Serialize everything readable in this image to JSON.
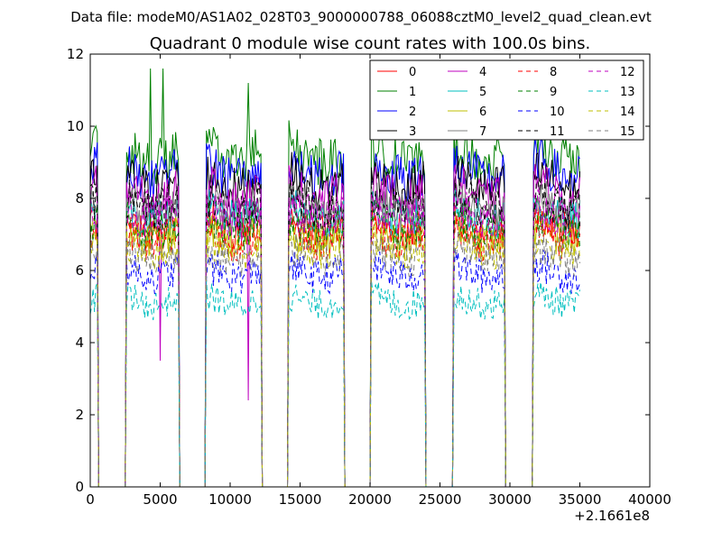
{
  "figure": {
    "suptitle": "Data file: modeM0/AS1A02_028T03_9000000788_06088cztM0_level2_quad_clean.evt"
  },
  "chart_data": {
    "type": "line",
    "title": "Quadrant 0 module wise count rates with 100.0s bins.",
    "xlabel": "",
    "ylabel": "",
    "x_offset_label": "+2.1661e8",
    "xlim": [
      0,
      40000
    ],
    "ylim": [
      0,
      12
    ],
    "x_ticks": [
      "0",
      "5000",
      "10000",
      "15000",
      "20000",
      "25000",
      "30000",
      "35000",
      "40000"
    ],
    "y_ticks": [
      "0",
      "2",
      "4",
      "6",
      "8",
      "10",
      "12"
    ],
    "grid": false,
    "legend_position": "top-right",
    "x_start": 0,
    "x_step": 100,
    "gaps": [
      [
        600,
        2500
      ],
      [
        6400,
        8200
      ],
      [
        12300,
        14100
      ],
      [
        18200,
        20000
      ],
      [
        24000,
        25900
      ],
      [
        29700,
        31600
      ]
    ],
    "series": [
      {
        "name": "0",
        "color": "#ff0000",
        "dash": false,
        "level": 7.3
      },
      {
        "name": "1",
        "color": "#008000",
        "dash": false,
        "level": 9.3
      },
      {
        "name": "2",
        "color": "#0000ff",
        "dash": false,
        "level": 8.8
      },
      {
        "name": "3",
        "color": "#000000",
        "dash": false,
        "level": 8.5
      },
      {
        "name": "4",
        "color": "#bf00bf",
        "dash": false,
        "level": 8.2
      },
      {
        "name": "5",
        "color": "#00bfbf",
        "dash": false,
        "level": 7.6
      },
      {
        "name": "6",
        "color": "#bfbf00",
        "dash": false,
        "level": 7.0
      },
      {
        "name": "7",
        "color": "#808080",
        "dash": false,
        "level": 7.8
      },
      {
        "name": "8",
        "color": "#ff0000",
        "dash": true,
        "level": 7.0
      },
      {
        "name": "9",
        "color": "#008000",
        "dash": true,
        "level": 7.3
      },
      {
        "name": "10",
        "color": "#0000ff",
        "dash": true,
        "level": 6.0
      },
      {
        "name": "11",
        "color": "#000000",
        "dash": true,
        "level": 7.9
      },
      {
        "name": "12",
        "color": "#bf00bf",
        "dash": true,
        "level": 7.6
      },
      {
        "name": "13",
        "color": "#00bfbf",
        "dash": true,
        "level": 5.2
      },
      {
        "name": "14",
        "color": "#bfbf00",
        "dash": true,
        "level": 6.7
      },
      {
        "name": "15",
        "color": "#808080",
        "dash": true,
        "level": 6.5
      }
    ]
  }
}
